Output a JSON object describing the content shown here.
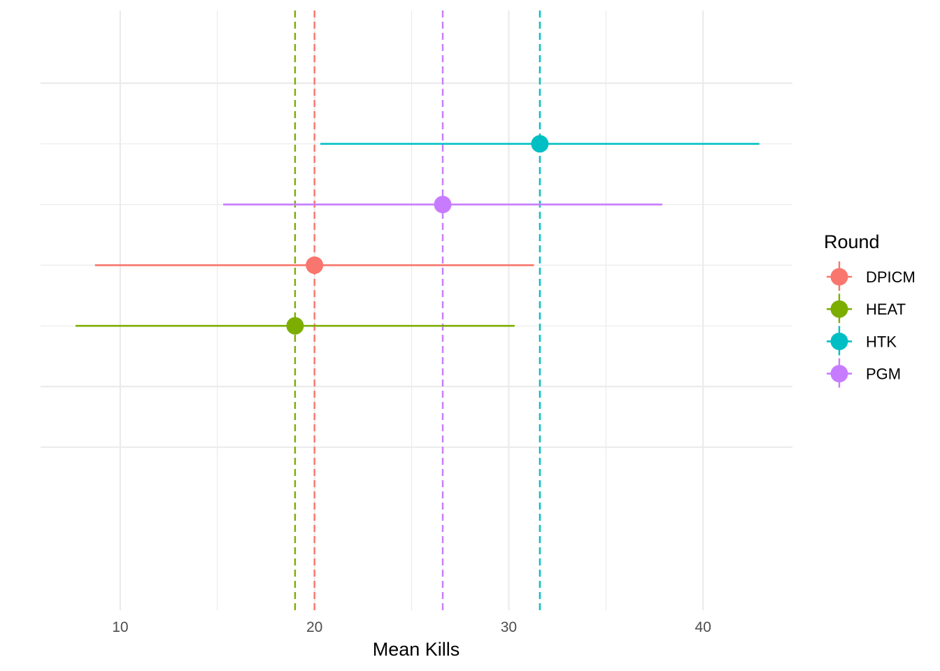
{
  "chart_data": {
    "type": "scatter",
    "xlabel": "Mean Kills",
    "ylabel": "",
    "xlim": [
      5.9,
      44.6
    ],
    "x_ticks": [
      10,
      20,
      30,
      40
    ],
    "x_tick_labels": [
      "10",
      "20",
      "30",
      "40"
    ],
    "grid": true,
    "legend": {
      "title": "Round",
      "position": "right"
    },
    "series": [
      {
        "name": "DPICM",
        "mean": 20.0,
        "ci_low": 8.7,
        "ci_high": 31.3,
        "row": 4,
        "color": "#F8766D"
      },
      {
        "name": "HEAT",
        "mean": 19.0,
        "ci_low": 7.7,
        "ci_high": 30.3,
        "row": 5,
        "color": "#7CAE00"
      },
      {
        "name": "HTK",
        "mean": 31.6,
        "ci_low": 20.3,
        "ci_high": 42.9,
        "row": 2,
        "color": "#00BFC4"
      },
      {
        "name": "PGM",
        "mean": 26.6,
        "ci_low": 15.3,
        "ci_high": 37.9,
        "row": 3,
        "color": "#C77CFF"
      }
    ]
  }
}
